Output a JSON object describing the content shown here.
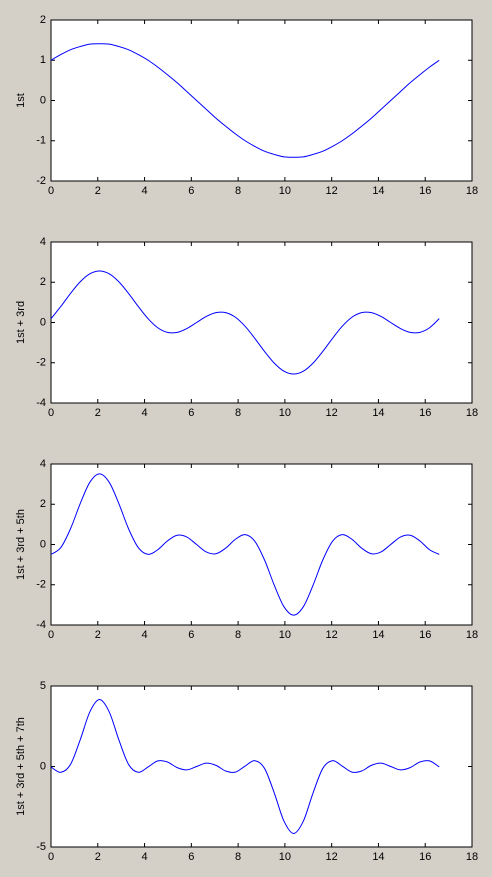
{
  "chart_data": [
    {
      "type": "line",
      "ylabel": "1st",
      "x": [
        0,
        0.415,
        0.83,
        1.245,
        1.66,
        2.075,
        2.49,
        2.905,
        3.32,
        3.735,
        4.15,
        4.565,
        4.98,
        5.395,
        5.81,
        6.225,
        6.64,
        7.055,
        7.47,
        7.885,
        8.3,
        8.715,
        9.13,
        9.545,
        9.96,
        10.375,
        10.79,
        11.205,
        11.62,
        12.035,
        12.45,
        12.865,
        13.28,
        13.695,
        14.11,
        14.525,
        14.94,
        15.355,
        15.77,
        16.185,
        16.6
      ],
      "values": [
        1.0,
        1.14,
        1.26,
        1.34,
        1.4,
        1.41,
        1.4,
        1.34,
        1.26,
        1.14,
        1.0,
        0.83,
        0.64,
        0.44,
        0.22,
        0,
        -0.22,
        -0.44,
        -0.64,
        -0.83,
        -1.0,
        -1.14,
        -1.26,
        -1.34,
        -1.4,
        -1.41,
        -1.4,
        -1.34,
        -1.26,
        -1.14,
        -1.0,
        -0.83,
        -0.64,
        -0.44,
        -0.22,
        0,
        0.22,
        0.44,
        0.64,
        0.83,
        1.0
      ],
      "color": "#0000ff",
      "xlim": [
        0,
        18
      ],
      "xticks": [
        0,
        2,
        4,
        6,
        8,
        10,
        12,
        14,
        16,
        18
      ],
      "ylim": [
        -2,
        2
      ],
      "yticks": [
        -2,
        -1,
        0,
        1,
        2
      ]
    },
    {
      "type": "line",
      "ylabel": "1st + 3rd",
      "x": [
        0,
        0.415,
        0.83,
        1.245,
        1.66,
        2.075,
        2.49,
        2.905,
        3.32,
        3.735,
        4.15,
        4.565,
        4.98,
        5.395,
        5.81,
        6.225,
        6.64,
        7.055,
        7.47,
        7.885,
        8.3,
        8.715,
        9.13,
        9.545,
        9.96,
        10.375,
        10.79,
        11.205,
        11.62,
        12.035,
        12.45,
        12.865,
        13.28,
        13.695,
        14.11,
        14.525,
        14.94,
        15.355,
        15.77,
        16.185,
        16.6
      ],
      "values": [
        0.19,
        0.79,
        1.44,
        2.02,
        2.42,
        2.56,
        2.42,
        2.02,
        1.44,
        0.79,
        0.19,
        -0.26,
        -0.49,
        -0.49,
        -0.3,
        0,
        0.3,
        0.49,
        0.49,
        0.26,
        -0.19,
        -0.79,
        -1.44,
        -2.02,
        -2.42,
        -2.56,
        -2.42,
        -2.02,
        -1.44,
        -0.79,
        -0.19,
        0.26,
        0.49,
        0.49,
        0.3,
        0,
        -0.3,
        -0.49,
        -0.49,
        -0.26,
        0.19
      ],
      "color": "#0000ff",
      "xlim": [
        0,
        18
      ],
      "xticks": [
        0,
        2,
        4,
        6,
        8,
        10,
        12,
        14,
        16,
        18
      ],
      "ylim": [
        -4,
        4
      ],
      "yticks": [
        -4,
        -2,
        0,
        2,
        4
      ]
    },
    {
      "type": "line",
      "ylabel": "1st + 3rd + 5th",
      "x": [
        0,
        0.415,
        0.83,
        1.245,
        1.66,
        2.075,
        2.49,
        2.905,
        3.32,
        3.735,
        4.15,
        4.565,
        4.98,
        5.395,
        5.81,
        6.225,
        6.64,
        7.055,
        7.47,
        7.885,
        8.3,
        8.715,
        9.13,
        9.545,
        9.96,
        10.375,
        10.79,
        11.205,
        11.62,
        12.035,
        12.45,
        12.865,
        13.28,
        13.695,
        14.11,
        14.525,
        14.94,
        15.355,
        15.77,
        16.185,
        16.6
      ],
      "values": [
        -0.49,
        -0.16,
        0.77,
        2.02,
        3.09,
        3.51,
        3.09,
        2.02,
        0.77,
        -0.16,
        -0.49,
        -0.26,
        0.18,
        0.46,
        0.37,
        0,
        -0.37,
        -0.46,
        -0.18,
        0.26,
        0.49,
        0.16,
        -0.77,
        -2.02,
        -3.09,
        -3.51,
        -3.09,
        -2.02,
        -0.77,
        0.16,
        0.49,
        0.26,
        -0.18,
        -0.46,
        -0.37,
        0,
        0.37,
        0.46,
        0.18,
        -0.26,
        -0.49
      ],
      "color": "#0000ff",
      "xlim": [
        0,
        18
      ],
      "xticks": [
        0,
        2,
        4,
        6,
        8,
        10,
        12,
        14,
        16,
        18
      ],
      "ylim": [
        -4,
        4
      ],
      "yticks": [
        -4,
        -2,
        0,
        2,
        4
      ]
    },
    {
      "type": "line",
      "ylabel": "1st + 3rd + 5th + 7th",
      "x": [
        0,
        0.415,
        0.83,
        1.245,
        1.66,
        2.075,
        2.49,
        2.905,
        3.32,
        3.735,
        4.15,
        4.565,
        4.98,
        5.395,
        5.81,
        6.225,
        6.64,
        7.055,
        7.47,
        7.885,
        8.3,
        8.715,
        9.13,
        9.545,
        9.96,
        10.375,
        10.79,
        11.205,
        11.62,
        12.035,
        12.45,
        12.865,
        13.28,
        13.695,
        14.11,
        14.525,
        14.94,
        15.355,
        15.77,
        16.185,
        16.6
      ],
      "values": [
        -0.03,
        -0.36,
        0.12,
        1.64,
        3.39,
        4.16,
        3.39,
        1.64,
        0.12,
        -0.36,
        -0.03,
        0.35,
        0.28,
        -0.07,
        -0.21,
        0,
        0.21,
        0.07,
        -0.28,
        -0.35,
        0.03,
        0.36,
        -0.12,
        -1.64,
        -3.39,
        -4.16,
        -3.39,
        -1.64,
        -0.12,
        0.36,
        0.03,
        -0.35,
        -0.28,
        0.07,
        0.21,
        0,
        -0.21,
        -0.07,
        0.28,
        0.35,
        -0.03
      ],
      "color": "#0000ff",
      "xlim": [
        0,
        18
      ],
      "xticks": [
        0,
        2,
        4,
        6,
        8,
        10,
        12,
        14,
        16,
        18
      ],
      "ylim": [
        -5,
        5
      ],
      "yticks": [
        -5,
        0,
        5
      ]
    }
  ]
}
